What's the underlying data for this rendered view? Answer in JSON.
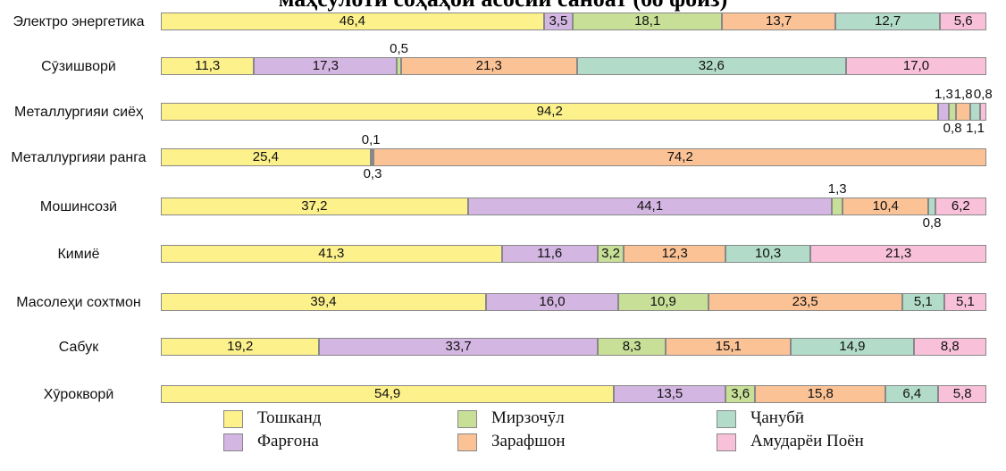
{
  "chart_data": {
    "type": "stacked-bar-horizontal",
    "title": "маҳсулоти соҳаҳои асосии саноат (бо фоиз)",
    "categories": [
      "Электро энергетика",
      "Сӯзишворӣ",
      "Металлургияи сиёҳ",
      "Металлургияи ранга",
      "Мошинсозӣ",
      "Кимиё",
      "Масолеҳи сохтмон",
      "Сабук",
      "Хӯрокворӣ"
    ],
    "xlim": [
      0,
      100
    ],
    "series": [
      {
        "name": "Тошканд",
        "color": "#fdf18c",
        "values": [
          46.4,
          11.3,
          94.2,
          25.4,
          37.2,
          41.3,
          39.4,
          19.2,
          54.9
        ],
        "value_labels": [
          "46,4",
          "11,3",
          "94,2",
          "25,4",
          "37,2",
          "41,3",
          "39,4",
          "19,2",
          "54,9"
        ]
      },
      {
        "name": "Фарғона",
        "color": "#d4b6e2",
        "values": [
          3.5,
          17.3,
          1.3,
          0.1,
          44.1,
          11.6,
          16.0,
          33.7,
          13.5
        ],
        "value_labels": [
          "3,5",
          "17,3",
          "1,3",
          "0,1",
          "44,1",
          "11,6",
          "16,0",
          "33,7",
          "13,5"
        ]
      },
      {
        "name": "Мирзочӯл",
        "color": "#c7df97",
        "values": [
          18.1,
          0.5,
          0.8,
          0.3,
          1.3,
          3.2,
          10.9,
          8.3,
          3.6
        ],
        "value_labels": [
          "18,1",
          "0,5",
          "0,8",
          "0,3",
          "1,3",
          "3,2",
          "10,9",
          "8,3",
          "3,6"
        ]
      },
      {
        "name": "Зарафшон",
        "color": "#fbc295",
        "values": [
          13.7,
          21.3,
          1.8,
          74.2,
          10.4,
          12.3,
          23.5,
          15.1,
          15.8
        ],
        "value_labels": [
          "13,7",
          "21,3",
          "1,8",
          "74,2",
          "10,4",
          "12,3",
          "23,5",
          "15,1",
          "15,8"
        ]
      },
      {
        "name": "Ҷанубӣ",
        "color": "#b2dcc9",
        "values": [
          12.7,
          32.6,
          1.1,
          null,
          0.8,
          10.3,
          5.1,
          14.9,
          6.4
        ],
        "value_labels": [
          "12,7",
          "32,6",
          "1,1",
          null,
          "0,8",
          "10,3",
          "5,1",
          "14,9",
          "6,4"
        ]
      },
      {
        "name": "Амударёи Поён",
        "color": "#f9c1d9",
        "values": [
          5.6,
          17.0,
          0.8,
          null,
          6.2,
          21.3,
          5.1,
          8.8,
          5.8
        ],
        "value_labels": [
          "5,6",
          "17,0",
          "0,8",
          null,
          "6,2",
          "21,3",
          "5,1",
          "8,8",
          "5,8"
        ]
      }
    ]
  }
}
